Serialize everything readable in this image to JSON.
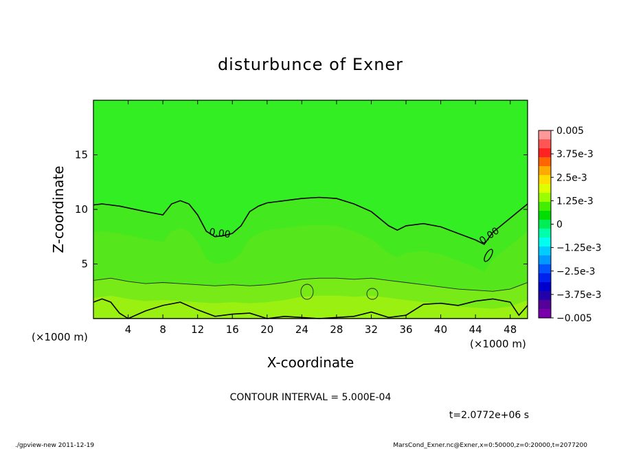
{
  "chart_data": {
    "type": "contour",
    "title": "disturbunce of Exner",
    "xlabel": "X-coordinate",
    "ylabel": "Z-coordinate",
    "x_units_left": "(×1000 m)",
    "x_units_right": "(×1000 m)",
    "xlim": [
      0,
      50
    ],
    "ylim": [
      0,
      20
    ],
    "x_ticks": [
      "4",
      "8",
      "12",
      "16",
      "20",
      "24",
      "28",
      "32",
      "36",
      "40",
      "44",
      "48"
    ],
    "y_ticks": [
      "5",
      "10",
      "15"
    ],
    "contour_labels": [
      "0.00",
      "0.00"
    ],
    "contour_interval_text": "CONTOUR INTERVAL = 5.000E-04",
    "time_text": "t=2.0772e+06 s",
    "colorbar": {
      "labels": [
        "0.005",
        "3.75e-3",
        "2.5e-3",
        "1.25e-3",
        "0",
        "−1.25e-3",
        "−2.5e-3",
        "−3.75e-3",
        "−0.005"
      ],
      "colors": [
        "#ff9999",
        "#ff5555",
        "#ff2222",
        "#ff6600",
        "#ffaa00",
        "#ffdd00",
        "#ddff00",
        "#99ff00",
        "#44ee00",
        "#00dd00",
        "#00ee55",
        "#00ffaa",
        "#00ffee",
        "#00ccff",
        "#0099ff",
        "#0055ff",
        "#0022ee",
        "#0000cc",
        "#2200aa",
        "#550099",
        "#7700aa"
      ]
    },
    "zero_contour": {
      "x": [
        0,
        1,
        3,
        6,
        8,
        9,
        10,
        11,
        12,
        13,
        14,
        15,
        16,
        17,
        18,
        19,
        20,
        22,
        24,
        26,
        28,
        30,
        32,
        34,
        35,
        36,
        38,
        40,
        42,
        44,
        45,
        46,
        48,
        50
      ],
      "z": [
        10.4,
        10.5,
        10.3,
        9.8,
        9.5,
        10.5,
        10.8,
        10.5,
        9.5,
        8.0,
        7.5,
        7.6,
        7.8,
        8.5,
        9.8,
        10.3,
        10.6,
        10.8,
        11.0,
        11.1,
        11.0,
        10.5,
        9.8,
        8.5,
        8.1,
        8.5,
        8.7,
        8.4,
        7.8,
        7.2,
        6.8,
        7.9,
        9.2,
        10.5
      ]
    },
    "lower_contour": {
      "x": [
        0,
        2,
        4,
        6,
        8,
        10,
        12,
        14,
        16,
        18,
        20,
        22,
        24,
        26,
        28,
        30,
        32,
        34,
        36,
        38,
        40,
        42,
        44,
        46,
        48,
        50
      ],
      "z": [
        3.5,
        3.7,
        3.4,
        3.2,
        3.3,
        3.2,
        3.1,
        3.0,
        3.1,
        3.0,
        3.1,
        3.3,
        3.6,
        3.7,
        3.7,
        3.6,
        3.7,
        3.5,
        3.3,
        3.1,
        2.9,
        2.7,
        2.6,
        2.5,
        2.7,
        3.3
      ]
    },
    "bottom_contour": {
      "x": [
        0,
        1,
        2,
        3,
        4,
        6,
        8,
        10,
        12,
        14,
        16,
        18,
        20,
        22,
        24,
        26,
        28,
        30,
        32,
        34,
        36,
        38,
        40,
        42,
        44,
        46,
        48,
        49,
        50
      ],
      "z": [
        1.5,
        1.8,
        1.5,
        0.5,
        0.0,
        0.7,
        1.2,
        1.5,
        0.8,
        0.2,
        0.4,
        0.5,
        0.0,
        0.2,
        0.1,
        0.0,
        0.1,
        0.2,
        0.6,
        0.1,
        0.3,
        1.3,
        1.4,
        1.2,
        1.6,
        1.8,
        1.5,
        0.3,
        1.2
      ]
    }
  },
  "footer": {
    "left": "./gpview-new   2011-12-19",
    "right": "MarsCond_Exner.nc@Exner,x=0:50000,z=0:20000,t=2077200"
  }
}
